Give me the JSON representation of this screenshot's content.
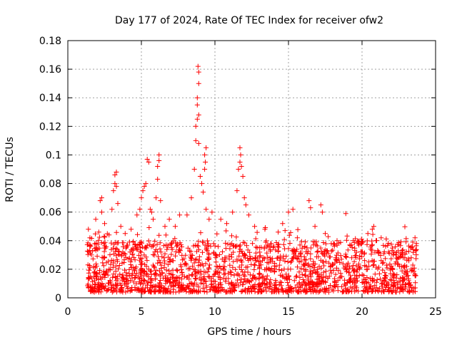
{
  "chart_data": {
    "type": "scatter",
    "title": "Day 177 of 2024, Rate Of TEC Index for receiver ofw2",
    "xlabel": "GPS time / hours",
    "ylabel": "ROTI / TECUs",
    "xlim": [
      0,
      25
    ],
    "ylim": [
      0,
      0.18
    ],
    "xticks": [
      0,
      5,
      10,
      15,
      20,
      25
    ],
    "xtick_labels": [
      "0",
      "5",
      "10",
      "15",
      "20",
      "25"
    ],
    "yticks": [
      0,
      0.02,
      0.04,
      0.06,
      0.08,
      0.1,
      0.12,
      0.14,
      0.16,
      0.18
    ],
    "ytick_labels": [
      "0",
      "0.02",
      "0.04",
      "0.06",
      "0.08",
      "0.1",
      "0.12",
      "0.14",
      "0.16",
      "0.18"
    ],
    "grid": true,
    "marker": "+",
    "color": "#ff0000",
    "series": [
      {
        "name": "ROTI",
        "x_range": [
          1.3,
          23.7
        ],
        "points": [
          [
            1.4,
            0.048
          ],
          [
            1.5,
            0.042
          ],
          [
            1.5,
            0.036
          ],
          [
            1.6,
            0.03
          ],
          [
            1.9,
            0.055
          ],
          [
            2.1,
            0.046
          ],
          [
            2.2,
            0.068
          ],
          [
            2.3,
            0.07
          ],
          [
            2.3,
            0.06
          ],
          [
            2.5,
            0.052
          ],
          [
            2.8,
            0.044
          ],
          [
            3.0,
            0.062
          ],
          [
            3.1,
            0.075
          ],
          [
            3.2,
            0.08
          ],
          [
            3.2,
            0.086
          ],
          [
            3.3,
            0.088
          ],
          [
            3.3,
            0.078
          ],
          [
            3.4,
            0.066
          ],
          [
            3.6,
            0.05
          ],
          [
            3.9,
            0.045
          ],
          [
            4.3,
            0.048
          ],
          [
            4.7,
            0.058
          ],
          [
            4.9,
            0.062
          ],
          [
            5.0,
            0.07
          ],
          [
            5.1,
            0.075
          ],
          [
            5.2,
            0.078
          ],
          [
            5.3,
            0.08
          ],
          [
            5.4,
            0.097
          ],
          [
            5.5,
            0.095
          ],
          [
            5.6,
            0.062
          ],
          [
            5.7,
            0.06
          ],
          [
            5.8,
            0.055
          ],
          [
            6.0,
            0.07
          ],
          [
            6.1,
            0.092
          ],
          [
            6.1,
            0.083
          ],
          [
            6.2,
            0.1
          ],
          [
            6.2,
            0.096
          ],
          [
            6.3,
            0.068
          ],
          [
            6.6,
            0.05
          ],
          [
            6.9,
            0.055
          ],
          [
            7.3,
            0.05
          ],
          [
            7.6,
            0.058
          ],
          [
            8.1,
            0.058
          ],
          [
            8.4,
            0.07
          ],
          [
            8.6,
            0.09
          ],
          [
            8.7,
            0.11
          ],
          [
            8.7,
            0.12
          ],
          [
            8.8,
            0.125
          ],
          [
            8.8,
            0.135
          ],
          [
            8.8,
            0.14
          ],
          [
            8.9,
            0.15
          ],
          [
            8.9,
            0.158
          ],
          [
            8.85,
            0.162
          ],
          [
            8.9,
            0.128
          ],
          [
            8.9,
            0.108
          ],
          [
            9.0,
            0.085
          ],
          [
            9.1,
            0.08
          ],
          [
            9.2,
            0.074
          ],
          [
            9.3,
            0.09
          ],
          [
            9.3,
            0.1
          ],
          [
            9.4,
            0.105
          ],
          [
            9.35,
            0.095
          ],
          [
            9.4,
            0.062
          ],
          [
            9.6,
            0.055
          ],
          [
            9.8,
            0.06
          ],
          [
            10.4,
            0.055
          ],
          [
            10.8,
            0.052
          ],
          [
            11.2,
            0.06
          ],
          [
            11.5,
            0.075
          ],
          [
            11.6,
            0.09
          ],
          [
            11.7,
            0.095
          ],
          [
            11.7,
            0.105
          ],
          [
            11.75,
            0.1
          ],
          [
            11.8,
            0.092
          ],
          [
            11.9,
            0.085
          ],
          [
            12.0,
            0.07
          ],
          [
            12.1,
            0.065
          ],
          [
            12.3,
            0.058
          ],
          [
            12.7,
            0.05
          ],
          [
            13.4,
            0.048
          ],
          [
            14.3,
            0.046
          ],
          [
            14.6,
            0.052
          ],
          [
            15.0,
            0.06
          ],
          [
            15.3,
            0.062
          ],
          [
            15.6,
            0.042
          ],
          [
            16.4,
            0.068
          ],
          [
            16.5,
            0.063
          ],
          [
            16.8,
            0.05
          ],
          [
            17.2,
            0.065
          ],
          [
            17.3,
            0.06
          ],
          [
            17.5,
            0.045
          ],
          [
            18.3,
            0.04
          ],
          [
            18.9,
            0.059
          ],
          [
            19.4,
            0.04
          ],
          [
            20.4,
            0.045
          ],
          [
            20.7,
            0.048
          ],
          [
            20.8,
            0.05
          ],
          [
            21.3,
            0.042
          ],
          [
            21.6,
            0.036
          ],
          [
            22.3,
            0.03
          ],
          [
            22.8,
            0.028
          ],
          [
            23.3,
            0.035
          ],
          [
            23.6,
            0.042
          ],
          [
            23.7,
            0.038
          ]
        ]
      }
    ]
  }
}
